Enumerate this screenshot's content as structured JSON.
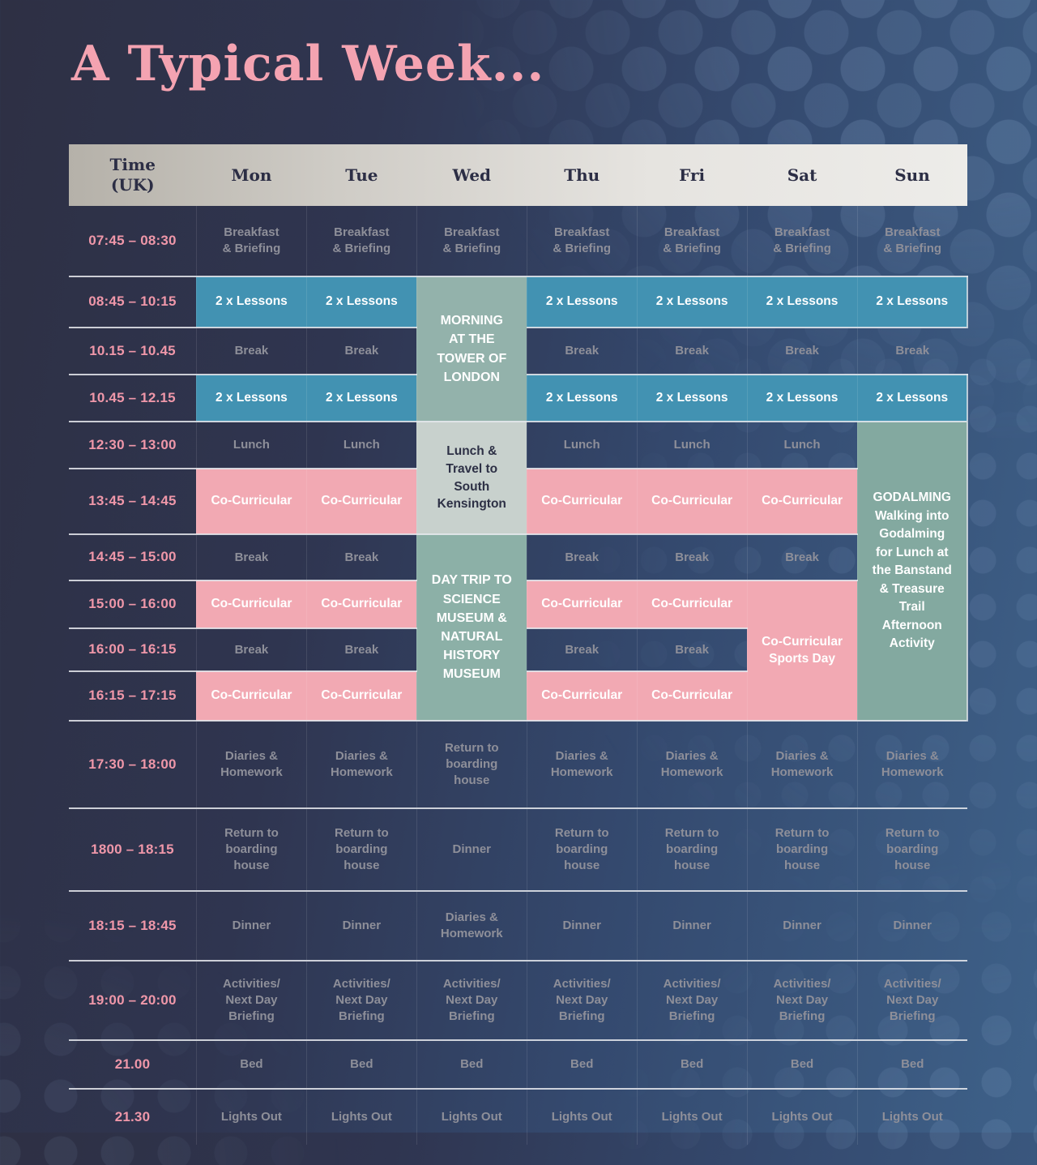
{
  "title": "A Typical Week...",
  "colors": {
    "background_left": "#2e3044",
    "background_right": "#3e6189",
    "title_pink": "#f4a3b1",
    "time_text_pink": "#ef97a9",
    "cell_text_gray": "#8e8f99",
    "lessons_teal": "#4292b2",
    "cocurricular_pink": "#f2a9b3",
    "trip_sage_green": "#8cb0a7",
    "lunch_travel_light": "#c8d1cd",
    "header_gradient_from": "#b5b1a9",
    "header_gradient_to": "#edece9",
    "header_text_navy": "#2c2e45"
  },
  "header": {
    "time": "Time\n(UK)",
    "days": [
      "Mon",
      "Tue",
      "Wed",
      "Thu",
      "Fri",
      "Sat",
      "Sun"
    ]
  },
  "rows": [
    {
      "time": "07:45 – 08:30",
      "cells": [
        "Breakfast\n& Briefing",
        "Breakfast\n& Briefing",
        "Breakfast\n& Briefing",
        "Breakfast\n& Briefing",
        "Breakfast\n& Briefing",
        "Breakfast\n& Briefing",
        "Breakfast\n& Briefing"
      ]
    },
    {
      "time": "08:45 – 10:15",
      "cells": [
        "2 x Lessons",
        "2 x Lessons",
        "MORNING\nAT THE\nTOWER OF\nLONDON",
        "2 x Lessons",
        "2 x Lessons",
        "2 x Lessons",
        "2 x Lessons"
      ]
    },
    {
      "time": "10.15 – 10.45",
      "cells": [
        "Break",
        "Break",
        "Break",
        "Break",
        "Break",
        "Break"
      ]
    },
    {
      "time": "10.45 – 12.15",
      "cells": [
        "2 x Lessons",
        "2 x Lessons",
        "2 x Lessons",
        "2 x Lessons",
        "2 x Lessons",
        "2 x Lessons"
      ]
    },
    {
      "time": "12:30 – 13:00",
      "cells": [
        "Lunch",
        "Lunch",
        "Lunch &\nTravel to\nSouth\nKensington",
        "Lunch",
        "Lunch",
        "Lunch",
        "GODALMING\nWalking into\nGodalming\nfor Lunch at\nthe Banstand\n& Treasure\nTrail\nAfternoon\nActivity"
      ]
    },
    {
      "time": "13:45 – 14:45",
      "cells": [
        "Co-Curricular",
        "Co-Curricular",
        "Co-Curricular",
        "Co-Curricular",
        "Co-Curricular"
      ]
    },
    {
      "time": "14:45 – 15:00",
      "cells": [
        "Break",
        "Break",
        "DAY TRIP TO\nSCIENCE\nMUSEUM &\nNATURAL\nHISTORY\nMUSEUM",
        "Break",
        "Break",
        "Break"
      ]
    },
    {
      "time": "15:00 – 16:00",
      "cells": [
        "Co-Curricular",
        "Co-Curricular",
        "Co-Curricular",
        "Co-Curricular",
        "Co-Curricular\nSports Day"
      ]
    },
    {
      "time": "16:00 – 16:15",
      "cells": [
        "Break",
        "Break",
        "Break",
        "Break"
      ]
    },
    {
      "time": "16:15 – 17:15",
      "cells": [
        "Co-Curricular",
        "Co-Curricular",
        "Co-Curricular",
        "Co-Curricular"
      ]
    },
    {
      "time": "17:30 – 18:00",
      "cells": [
        "Diaries &\nHomework",
        "Diaries &\nHomework",
        "Return to\nboarding\nhouse",
        "Diaries &\nHomework",
        "Diaries &\nHomework",
        "Diaries &\nHomework",
        "Diaries &\nHomework"
      ]
    },
    {
      "time": "1800 – 18:15",
      "cells": [
        "Return to\nboarding\nhouse",
        "Return to\nboarding\nhouse",
        "Dinner",
        "Return to\nboarding\nhouse",
        "Return to\nboarding\nhouse",
        "Return to\nboarding\nhouse",
        "Return to\nboarding\nhouse"
      ]
    },
    {
      "time": "18:15 – 18:45",
      "cells": [
        "Dinner",
        "Dinner",
        "Diaries &\nHomework",
        "Dinner",
        "Dinner",
        "Dinner",
        "Dinner"
      ]
    },
    {
      "time": "19:00 – 20:00",
      "cells": [
        "Activities/\nNext Day\nBriefing",
        "Activities/\nNext Day\nBriefing",
        "Activities/\nNext Day\nBriefing",
        "Activities/\nNext Day\nBriefing",
        "Activities/\nNext Day\nBriefing",
        "Activities/\nNext Day\nBriefing",
        "Activities/\nNext Day\nBriefing"
      ]
    },
    {
      "time": "21.00",
      "cells": [
        "Bed",
        "Bed",
        "Bed",
        "Bed",
        "Bed",
        "Bed",
        "Bed"
      ]
    },
    {
      "time": "21.30",
      "cells": [
        "Lights Out",
        "Lights Out",
        "Lights Out",
        "Lights Out",
        "Lights Out",
        "Lights Out",
        "Lights Out"
      ]
    }
  ]
}
